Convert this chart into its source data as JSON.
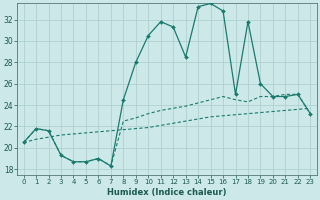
{
  "xlabel": "Humidex (Indice chaleur)",
  "bg_color": "#cce8e8",
  "grid_color": "#aacccc",
  "line_color": "#1a7a6e",
  "xlim": [
    -0.5,
    23.5
  ],
  "ylim": [
    17.5,
    33.5
  ],
  "xticks": [
    0,
    1,
    2,
    3,
    4,
    5,
    6,
    7,
    8,
    9,
    10,
    11,
    12,
    13,
    14,
    15,
    16,
    17,
    18,
    19,
    20,
    21,
    22,
    23
  ],
  "yticks": [
    18,
    20,
    22,
    24,
    26,
    28,
    30,
    32
  ],
  "line1_x": [
    0,
    1,
    2,
    3,
    4,
    5,
    6,
    7,
    8,
    9,
    10,
    11,
    12,
    13,
    14,
    15,
    16,
    17,
    18,
    19,
    20,
    21,
    22,
    23
  ],
  "line1_y": [
    20.5,
    21.8,
    21.6,
    19.3,
    18.7,
    18.7,
    19.0,
    18.3,
    24.5,
    28.0,
    30.5,
    31.8,
    31.3,
    28.5,
    33.2,
    33.5,
    32.8,
    25.0,
    31.8,
    26.0,
    24.8,
    24.8,
    25.0,
    23.2
  ],
  "line2_x": [
    0,
    1,
    2,
    3,
    4,
    5,
    6,
    7,
    8,
    9,
    10,
    11,
    12,
    13,
    14,
    15,
    16,
    17,
    18,
    19,
    20,
    21,
    22,
    23
  ],
  "line2_y": [
    20.5,
    21.8,
    21.6,
    19.3,
    18.7,
    18.7,
    19.0,
    18.3,
    22.5,
    22.8,
    23.2,
    23.5,
    23.7,
    23.9,
    24.2,
    24.5,
    24.8,
    24.5,
    24.3,
    24.8,
    24.8,
    25.0,
    25.0,
    23.2
  ],
  "line3_x": [
    0,
    1,
    2,
    3,
    4,
    5,
    6,
    7,
    8,
    9,
    10,
    11,
    12,
    13,
    14,
    15,
    16,
    17,
    18,
    19,
    20,
    21,
    22,
    23
  ],
  "line3_y": [
    20.5,
    20.8,
    21.0,
    21.2,
    21.3,
    21.4,
    21.5,
    21.6,
    21.7,
    21.8,
    21.9,
    22.1,
    22.3,
    22.5,
    22.7,
    22.9,
    23.0,
    23.1,
    23.2,
    23.3,
    23.4,
    23.5,
    23.6,
    23.7
  ]
}
